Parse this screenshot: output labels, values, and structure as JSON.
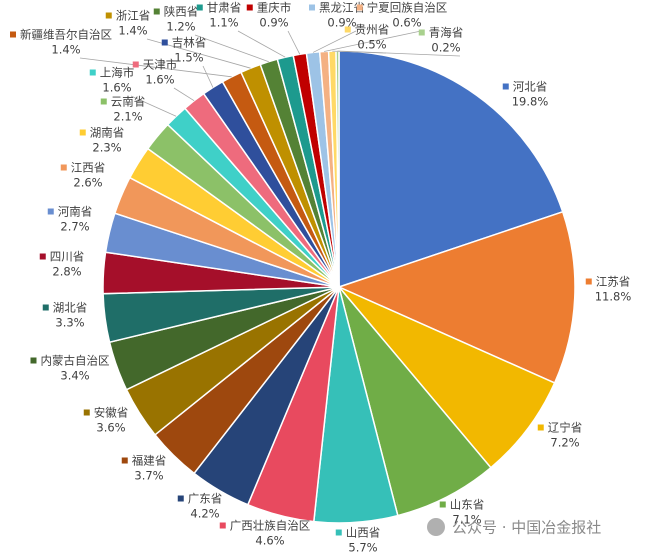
{
  "chart_data": {
    "type": "pie",
    "categories": [
      "河北省",
      "江苏省",
      "辽宁省",
      "山东省",
      "山西省",
      "广西壮族自治区",
      "广东省",
      "福建省",
      "安徽省",
      "内蒙古自治区",
      "湖北省",
      "四川省",
      "河南省",
      "江西省",
      "湖南省",
      "云南省",
      "上海市",
      "天津市",
      "吉林省",
      "新疆维吾尔自治区",
      "浙江省",
      "陕西省",
      "甘肃省",
      "重庆市",
      "黑龙江省",
      "宁夏回族自治区",
      "贵州省",
      "青海省"
    ],
    "values": [
      19.8,
      11.8,
      7.2,
      7.1,
      5.7,
      4.6,
      4.2,
      3.7,
      3.6,
      3.4,
      3.3,
      2.8,
      2.7,
      2.6,
      2.3,
      2.1,
      1.6,
      1.6,
      1.5,
      1.4,
      1.4,
      1.2,
      1.1,
      0.9,
      0.9,
      0.6,
      0.5,
      0.2
    ],
    "value_labels": [
      "19.8%",
      "11.8%",
      "7.2%",
      "7.1%",
      "5.7%",
      "4.6%",
      "4.2%",
      "3.7%",
      "3.6%",
      "3.4%",
      "3.3%",
      "2.8%",
      "2.7%",
      "2.6%",
      "2.3%",
      "2.1%",
      "1.6%",
      "1.6%",
      "1.5%",
      "1.4%",
      "1.4%",
      "1.2%",
      "1.1%",
      "0.9%",
      "0.9%",
      "0.6%",
      "0.5%",
      "0.2%"
    ],
    "colors": [
      "#4472c4",
      "#ed7d31",
      "#f2b800",
      "#70ad47",
      "#36c0b8",
      "#e84a5f",
      "#264478",
      "#9e480e",
      "#997300",
      "#43682b",
      "#1f6e68",
      "#a50f2a",
      "#698ed0",
      "#f1975a",
      "#ffcd33",
      "#8cc168",
      "#3fd0c8",
      "#ee6b7d",
      "#2f4f9c",
      "#c55a11",
      "#bf9000",
      "#548235",
      "#1d9a8e",
      "#c00000",
      "#9dc3e6",
      "#f4b183",
      "#ffd966",
      "#a9d18e"
    ],
    "watermark": "公众号 · 中国冶金报社"
  }
}
